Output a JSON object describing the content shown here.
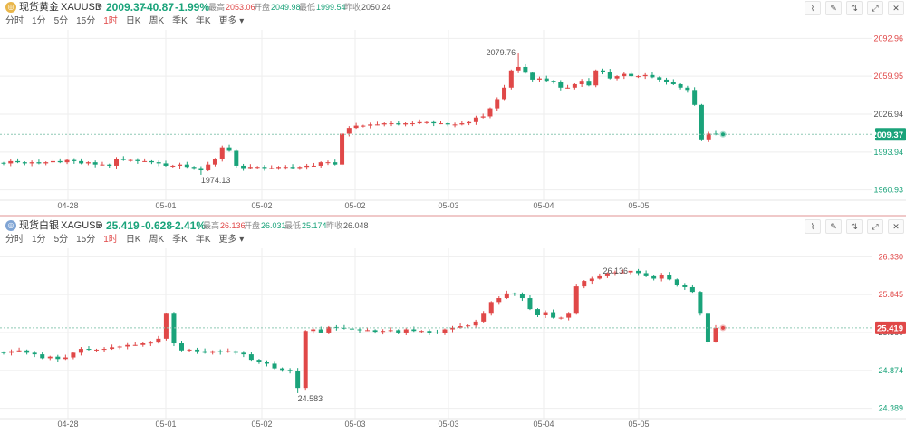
{
  "gold": {
    "name": "现货黄金",
    "symbol": "XAUUSD",
    "price": "2009.37",
    "change": "-40.87",
    "change_pct": "-1.99%",
    "high_label": "最高",
    "high": "2053.06",
    "open_label": "开盘",
    "open": "2049.98",
    "low_label": "最低",
    "low": "1999.54",
    "prev_label": "昨收",
    "prev": "2050.24",
    "timeframes": [
      "分时",
      "1分",
      "5分",
      "15分",
      "1时",
      "日K",
      "周K",
      "季K",
      "年K",
      "更多"
    ],
    "active_timeframe": "1时",
    "price_tag": "2009.37",
    "max_annotation": "2079.76",
    "min_annotation": "1974.13"
  },
  "silver": {
    "name": "现货白银",
    "symbol": "XAGUSD",
    "price": "25.419",
    "change": "-0.628",
    "change_pct": "-2.41%",
    "high_label": "最高",
    "high": "26.136",
    "open_label": "开盘",
    "open": "26.031",
    "low_label": "最低",
    "low": "25.174",
    "prev_label": "昨收",
    "prev": "26.048",
    "timeframes": [
      "分时",
      "1分",
      "5分",
      "15分",
      "1时",
      "日K",
      "周K",
      "季K",
      "年K",
      "更多"
    ],
    "active_timeframe": "1时",
    "price_tag": "25.419",
    "hidden_tick": "25.360",
    "max_annotation": "26.136",
    "min_annotation": "24.583"
  },
  "colors": {
    "up": "#e04848",
    "down": "#1aa37a",
    "grid": "#eeeeee",
    "axis_text": "#555555"
  },
  "chart_data": [
    {
      "type": "candlestick",
      "series": "XAUUSD",
      "y_ticks": [
        2092.96,
        2059.95,
        2026.94,
        1993.94,
        1960.93
      ],
      "x_ticks": [
        "04-28",
        "05-01",
        "05-02",
        "05-02",
        "05-03",
        "05-04",
        "05-05"
      ],
      "annotations": {
        "max": 2079.76,
        "min": 1974.13
      },
      "last": 2009.37,
      "closes": [
        1984,
        1986,
        1985,
        1984,
        1985,
        1984,
        1985,
        1986,
        1985,
        1987,
        1986,
        1984,
        1985,
        1983,
        1983,
        1982,
        1988,
        1987,
        1987,
        1986,
        1986,
        1985,
        1984,
        1982,
        1982,
        1983,
        1981,
        1980,
        1978,
        1983,
        1988,
        1998,
        1995,
        1982,
        1980,
        1981,
        1981,
        1980,
        1980,
        1981,
        1981,
        1980,
        1981,
        1982,
        1982,
        1985,
        1985,
        1983,
        2010,
        2015,
        2017,
        2017,
        2018,
        2018,
        2019,
        2019,
        2018,
        2019,
        2019,
        2020,
        2020,
        2019,
        2019,
        2018,
        2018,
        2019,
        2020,
        2024,
        2025,
        2032,
        2040,
        2050,
        2065,
        2068,
        2063,
        2057,
        2058,
        2056,
        2055,
        2050,
        2050,
        2053,
        2056,
        2052,
        2065,
        2064,
        2058,
        2060,
        2062,
        2060,
        2060,
        2061,
        2059,
        2057,
        2055,
        2053,
        2050,
        2048,
        2035,
        2005,
        2010,
        2009.37
      ]
    },
    {
      "type": "candlestick",
      "series": "XAGUSD",
      "y_ticks": [
        26.33,
        25.845,
        25.36,
        24.874,
        24.389
      ],
      "x_ticks": [
        "04-28",
        "05-01",
        "05-02",
        "05-03",
        "05-03",
        "05-04",
        "05-05"
      ],
      "annotations": {
        "max": 26.136,
        "min": 24.583
      },
      "last": 25.419,
      "closes": [
        25.1,
        25.12,
        25.13,
        25.1,
        25.08,
        25.03,
        25.05,
        25.02,
        25.04,
        25.1,
        25.15,
        25.14,
        25.14,
        25.15,
        25.17,
        25.18,
        25.2,
        25.2,
        25.22,
        25.23,
        25.28,
        25.6,
        25.22,
        25.13,
        25.14,
        25.12,
        25.1,
        25.12,
        25.11,
        25.12,
        25.1,
        25.08,
        25.01,
        24.98,
        24.96,
        24.9,
        24.88,
        24.87,
        24.65,
        25.38,
        25.4,
        25.36,
        25.43,
        25.42,
        25.41,
        25.4,
        25.39,
        25.39,
        25.37,
        25.38,
        25.39,
        25.36,
        25.4,
        25.38,
        25.38,
        25.36,
        25.35,
        25.4,
        25.42,
        25.44,
        25.45,
        25.5,
        25.6,
        25.75,
        25.8,
        25.86,
        25.85,
        25.8,
        25.66,
        25.58,
        25.62,
        25.55,
        25.55,
        25.6,
        25.95,
        26.02,
        26.05,
        26.08,
        26.12,
        26.13,
        26.13,
        26.15,
        26.12,
        26.08,
        26.05,
        26.1,
        26.04,
        25.97,
        25.94,
        25.88,
        25.6,
        25.24,
        25.419
      ]
    }
  ]
}
